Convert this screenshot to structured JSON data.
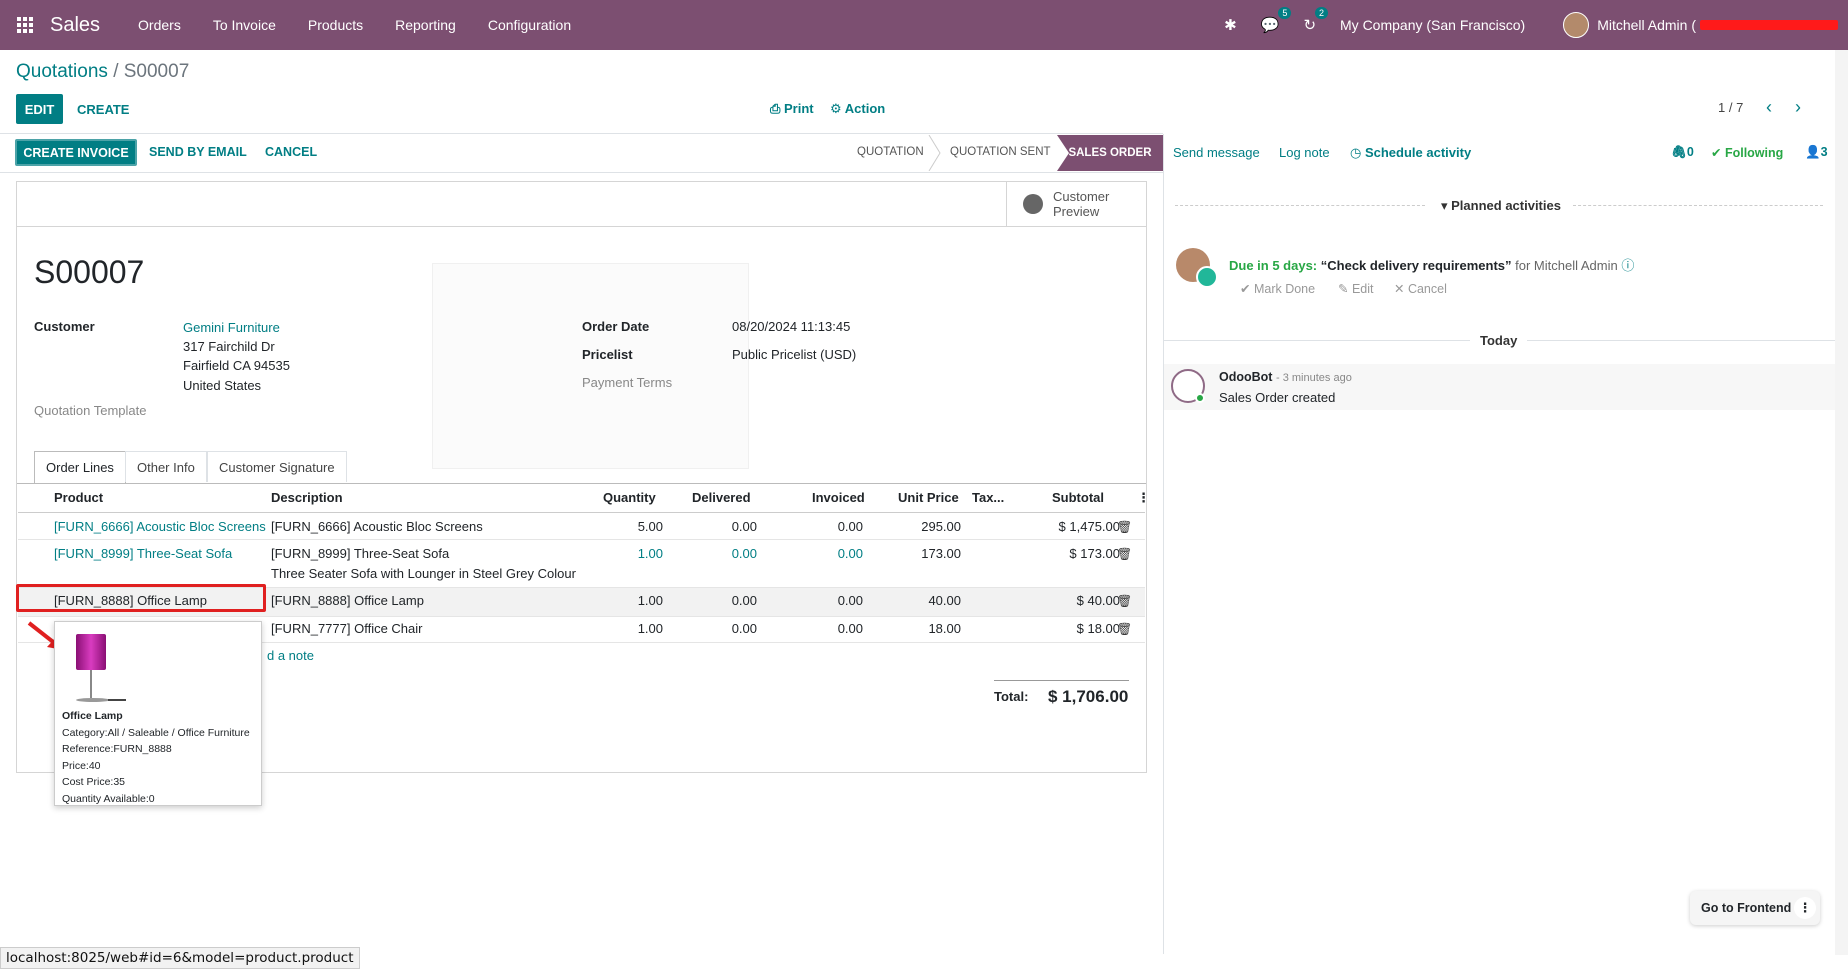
{
  "navbar": {
    "brand": "Sales",
    "menu": [
      "Orders",
      "To Invoice",
      "Products",
      "Reporting",
      "Configuration"
    ],
    "messages_badge": "5",
    "activities_badge": "2",
    "company": "My Company (San Francisco)",
    "user": "Mitchell Admin ("
  },
  "breadcrumb": {
    "parent": "Quotations",
    "separator": "/",
    "current": "S00007"
  },
  "control": {
    "edit": "EDIT",
    "create": "CREATE",
    "print": "Print",
    "action": "Action",
    "pager": "1 / 7"
  },
  "statusbar": {
    "create_invoice": "CREATE INVOICE",
    "send_email": "SEND BY EMAIL",
    "cancel": "CANCEL",
    "stages": [
      "QUOTATION",
      "QUOTATION SENT",
      "SALES ORDER"
    ],
    "active_stage": "SALES ORDER"
  },
  "sheet": {
    "customer_preview": "Customer Preview",
    "name": "S00007",
    "customer_label": "Customer",
    "customer_name": "Gemini Furniture",
    "address": [
      "317 Fairchild Dr",
      "Fairfield CA 94535",
      "United States"
    ],
    "quotation_template_label": "Quotation Template",
    "order_date_label": "Order Date",
    "order_date": "08/20/2024 11:13:45",
    "pricelist_label": "Pricelist",
    "pricelist": "Public Pricelist (USD)",
    "payment_terms_label": "Payment Terms"
  },
  "tabs": [
    "Order Lines",
    "Other Info",
    "Customer Signature"
  ],
  "table": {
    "headers": [
      "Product",
      "Description",
      "Quantity",
      "Delivered",
      "Invoiced",
      "Unit Price",
      "Tax...",
      "Subtotal"
    ],
    "rows": [
      {
        "product": "[FURN_6666] Acoustic Bloc Screens",
        "description": "[FURN_6666] Acoustic Bloc Screens",
        "quantity": "5.00",
        "delivered": "0.00",
        "invoiced": "0.00",
        "unit_price": "295.00",
        "subtotal": "$ 1,475.00"
      },
      {
        "product": "[FURN_8999] Three-Seat Sofa",
        "description": "[FURN_8999] Three-Seat Sofa",
        "description2": "Three Seater Sofa with Lounger in Steel Grey Colour",
        "quantity": "1.00",
        "delivered": "0.00",
        "invoiced": "0.00",
        "unit_price": "173.00",
        "subtotal": "$ 173.00"
      },
      {
        "product": "[FURN_8888] Office Lamp",
        "description": "[FURN_8888] Office Lamp",
        "quantity": "1.00",
        "delivered": "0.00",
        "invoiced": "0.00",
        "unit_price": "40.00",
        "subtotal": "$ 40.00"
      },
      {
        "product": "",
        "description": "[FURN_7777] Office Chair",
        "quantity": "1.00",
        "delivered": "0.00",
        "invoiced": "0.00",
        "unit_price": "18.00",
        "subtotal": "$ 18.00"
      }
    ],
    "add_note": "d a note",
    "total_label": "Total:",
    "total_value": "$ 1,706.00"
  },
  "popover": {
    "title": "Office Lamp",
    "lines": [
      "Category:All / Saleable / Office Furniture",
      "Reference:FURN_8888",
      "Price:40",
      "Cost Price:35",
      "Quantity Available:0"
    ]
  },
  "chatter": {
    "send_message": "Send message",
    "log_note": "Log note",
    "schedule_activity": "Schedule activity",
    "attachments": "0",
    "following": "Following",
    "followers": "3",
    "planned_activities": "Planned activities",
    "activity": {
      "due": "Due in 5 days:",
      "title": "“Check delivery requirements”",
      "for": "for Mitchell Admin",
      "mark_done": "Mark Done",
      "edit": "Edit",
      "cancel": "Cancel"
    },
    "today": "Today",
    "message": {
      "author": "OdooBot",
      "time": "- 3 minutes ago",
      "body": "Sales Order created"
    }
  },
  "goto_frontend": "Go to Frontend",
  "status_url": "localhost:8025/web#id=6&model=product.product",
  "colors": {
    "brand": "#7c4f71",
    "accent": "#017e84",
    "highlight": "#e02020"
  }
}
